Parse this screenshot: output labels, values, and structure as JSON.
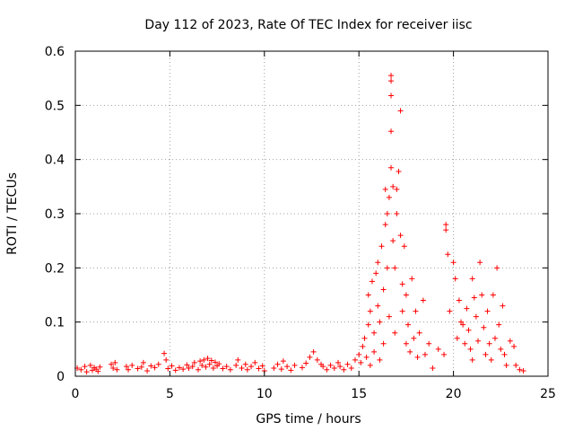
{
  "chart_data": {
    "type": "scatter",
    "title": "Day 112 of 2023, Rate Of TEC Index for receiver iisc",
    "xlabel": "GPS time / hours",
    "ylabel": "ROTI / TECUs",
    "xlim": [
      0,
      25
    ],
    "ylim": [
      0,
      0.6
    ],
    "xticks": [
      0,
      5,
      10,
      15,
      20,
      25
    ],
    "xtick_labels": [
      "0",
      "5",
      "10",
      "15",
      "20",
      "25"
    ],
    "yticks": [
      0,
      0.1,
      0.2,
      0.3,
      0.4,
      0.5,
      0.6
    ],
    "ytick_labels": [
      "0",
      "0.1",
      "0.2",
      "0.3",
      "0.4",
      "0.5",
      "0.6"
    ],
    "grid": true,
    "marker": "+",
    "color": "#ff0000",
    "series": [
      {
        "name": "ROTI",
        "points": [
          [
            0.1,
            0.015
          ],
          [
            0.3,
            0.012
          ],
          [
            0.5,
            0.018
          ],
          [
            0.6,
            0.008
          ],
          [
            0.8,
            0.02
          ],
          [
            0.9,
            0.011
          ],
          [
            1.0,
            0.016
          ],
          [
            1.1,
            0.013
          ],
          [
            1.2,
            0.009
          ],
          [
            1.3,
            0.017
          ],
          [
            1.9,
            0.022
          ],
          [
            2.0,
            0.015
          ],
          [
            2.1,
            0.025
          ],
          [
            2.2,
            0.012
          ],
          [
            2.7,
            0.018
          ],
          [
            2.8,
            0.012
          ],
          [
            3.0,
            0.02
          ],
          [
            3.3,
            0.014
          ],
          [
            3.5,
            0.017
          ],
          [
            3.6,
            0.025
          ],
          [
            3.8,
            0.01
          ],
          [
            4.0,
            0.019
          ],
          [
            4.2,
            0.016
          ],
          [
            4.4,
            0.022
          ],
          [
            4.7,
            0.042
          ],
          [
            4.8,
            0.03
          ],
          [
            4.9,
            0.014
          ],
          [
            5.1,
            0.019
          ],
          [
            5.3,
            0.011
          ],
          [
            5.5,
            0.016
          ],
          [
            5.7,
            0.013
          ],
          [
            5.9,
            0.021
          ],
          [
            6.0,
            0.015
          ],
          [
            6.2,
            0.018
          ],
          [
            6.3,
            0.025
          ],
          [
            6.5,
            0.012
          ],
          [
            6.6,
            0.028
          ],
          [
            6.7,
            0.02
          ],
          [
            6.8,
            0.03
          ],
          [
            6.9,
            0.017
          ],
          [
            7.0,
            0.033
          ],
          [
            7.1,
            0.022
          ],
          [
            7.2,
            0.029
          ],
          [
            7.3,
            0.015
          ],
          [
            7.4,
            0.026
          ],
          [
            7.5,
            0.019
          ],
          [
            7.6,
            0.023
          ],
          [
            7.8,
            0.014
          ],
          [
            8.0,
            0.018
          ],
          [
            8.2,
            0.012
          ],
          [
            8.5,
            0.02
          ],
          [
            8.6,
            0.03
          ],
          [
            8.8,
            0.015
          ],
          [
            9.0,
            0.022
          ],
          [
            9.1,
            0.012
          ],
          [
            9.3,
            0.018
          ],
          [
            9.5,
            0.025
          ],
          [
            9.7,
            0.014
          ],
          [
            9.9,
            0.019
          ],
          [
            10.0,
            0.01
          ],
          [
            10.5,
            0.015
          ],
          [
            10.7,
            0.022
          ],
          [
            10.9,
            0.013
          ],
          [
            11.0,
            0.028
          ],
          [
            11.2,
            0.018
          ],
          [
            11.4,
            0.011
          ],
          [
            11.6,
            0.02
          ],
          [
            12.0,
            0.016
          ],
          [
            12.2,
            0.024
          ],
          [
            12.4,
            0.035
          ],
          [
            12.6,
            0.045
          ],
          [
            12.8,
            0.03
          ],
          [
            13.0,
            0.022
          ],
          [
            13.1,
            0.018
          ],
          [
            13.3,
            0.012
          ],
          [
            13.5,
            0.02
          ],
          [
            13.7,
            0.015
          ],
          [
            13.9,
            0.025
          ],
          [
            14.0,
            0.018
          ],
          [
            14.2,
            0.012
          ],
          [
            14.4,
            0.022
          ],
          [
            14.6,
            0.015
          ],
          [
            14.8,
            0.03
          ],
          [
            15.0,
            0.04
          ],
          [
            15.1,
            0.025
          ],
          [
            15.2,
            0.055
          ],
          [
            15.3,
            0.07
          ],
          [
            15.4,
            0.035
          ],
          [
            15.5,
            0.095
          ],
          [
            15.5,
            0.15
          ],
          [
            15.6,
            0.12
          ],
          [
            15.6,
            0.02
          ],
          [
            15.7,
            0.175
          ],
          [
            15.8,
            0.08
          ],
          [
            15.8,
            0.045
          ],
          [
            15.9,
            0.19
          ],
          [
            16.0,
            0.21
          ],
          [
            16.0,
            0.13
          ],
          [
            16.1,
            0.1
          ],
          [
            16.1,
            0.03
          ],
          [
            16.2,
            0.24
          ],
          [
            16.3,
            0.16
          ],
          [
            16.3,
            0.06
          ],
          [
            16.4,
            0.28
          ],
          [
            16.4,
            0.345
          ],
          [
            16.5,
            0.3
          ],
          [
            16.5,
            0.2
          ],
          [
            16.6,
            0.33
          ],
          [
            16.6,
            0.11
          ],
          [
            16.7,
            0.555
          ],
          [
            16.7,
            0.545
          ],
          [
            16.7,
            0.518
          ],
          [
            16.7,
            0.452
          ],
          [
            16.7,
            0.385
          ],
          [
            16.8,
            0.35
          ],
          [
            16.8,
            0.25
          ],
          [
            16.9,
            0.2
          ],
          [
            16.9,
            0.08
          ],
          [
            17.0,
            0.345
          ],
          [
            17.0,
            0.3
          ],
          [
            17.1,
            0.378
          ],
          [
            17.2,
            0.49
          ],
          [
            17.2,
            0.26
          ],
          [
            17.3,
            0.17
          ],
          [
            17.3,
            0.12
          ],
          [
            17.4,
            0.24
          ],
          [
            17.5,
            0.15
          ],
          [
            17.5,
            0.06
          ],
          [
            17.6,
            0.095
          ],
          [
            17.7,
            0.045
          ],
          [
            17.8,
            0.18
          ],
          [
            17.9,
            0.07
          ],
          [
            18.0,
            0.12
          ],
          [
            18.1,
            0.035
          ],
          [
            18.2,
            0.08
          ],
          [
            18.4,
            0.14
          ],
          [
            18.5,
            0.04
          ],
          [
            18.7,
            0.06
          ],
          [
            18.9,
            0.015
          ],
          [
            19.2,
            0.05
          ],
          [
            19.5,
            0.04
          ],
          [
            19.6,
            0.28
          ],
          [
            19.6,
            0.27
          ],
          [
            19.7,
            0.225
          ],
          [
            19.8,
            0.12
          ],
          [
            20.0,
            0.21
          ],
          [
            20.1,
            0.18
          ],
          [
            20.2,
            0.07
          ],
          [
            20.3,
            0.14
          ],
          [
            20.4,
            0.1
          ],
          [
            20.5,
            0.095
          ],
          [
            20.6,
            0.06
          ],
          [
            20.7,
            0.125
          ],
          [
            20.8,
            0.085
          ],
          [
            20.9,
            0.05
          ],
          [
            21.0,
            0.03
          ],
          [
            21.0,
            0.18
          ],
          [
            21.1,
            0.145
          ],
          [
            21.2,
            0.11
          ],
          [
            21.3,
            0.065
          ],
          [
            21.4,
            0.21
          ],
          [
            21.5,
            0.15
          ],
          [
            21.6,
            0.09
          ],
          [
            21.7,
            0.04
          ],
          [
            21.8,
            0.12
          ],
          [
            21.9,
            0.06
          ],
          [
            22.0,
            0.03
          ],
          [
            22.1,
            0.15
          ],
          [
            22.2,
            0.07
          ],
          [
            22.3,
            0.2
          ],
          [
            22.4,
            0.095
          ],
          [
            22.5,
            0.05
          ],
          [
            22.6,
            0.13
          ],
          [
            22.7,
            0.04
          ],
          [
            22.8,
            0.02
          ],
          [
            23.0,
            0.065
          ],
          [
            23.2,
            0.055
          ],
          [
            23.3,
            0.02
          ],
          [
            23.5,
            0.012
          ],
          [
            23.7,
            0.01
          ]
        ]
      }
    ]
  }
}
